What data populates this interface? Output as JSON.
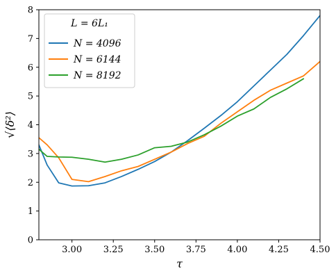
{
  "chart_data": {
    "type": "line",
    "xlabel": "τ",
    "ylabel": "√⟨δ²⟩",
    "xlim": [
      2.8,
      4.5
    ],
    "ylim": [
      0,
      8
    ],
    "xticks": [
      "3.00",
      "3.25",
      "3.50",
      "3.75",
      "4.00",
      "4.25",
      "4.50"
    ],
    "xtick_values": [
      3.0,
      3.25,
      3.5,
      3.75,
      4.0,
      4.25,
      4.5
    ],
    "yticks": [
      "0",
      "1",
      "2",
      "3",
      "4",
      "5",
      "6",
      "7",
      "8"
    ],
    "ytick_values": [
      0,
      1,
      2,
      3,
      4,
      5,
      6,
      7,
      8
    ],
    "grid": false,
    "legend": {
      "title": "L = 6L₁",
      "placement": "upper-left"
    },
    "series": [
      {
        "name": "N = 4096",
        "color": "#1f77b4",
        "x": [
          2.8,
          2.85,
          2.92,
          3.0,
          3.1,
          3.2,
          3.3,
          3.4,
          3.5,
          3.6,
          3.7,
          3.8,
          3.9,
          4.0,
          4.1,
          4.2,
          4.3,
          4.4,
          4.5
        ],
        "y": [
          3.3,
          2.6,
          1.98,
          1.87,
          1.88,
          1.98,
          2.2,
          2.45,
          2.72,
          3.05,
          3.45,
          3.88,
          4.32,
          4.8,
          5.35,
          5.9,
          6.45,
          7.1,
          7.8
        ]
      },
      {
        "name": "N = 6144",
        "color": "#ff7f0e",
        "x": [
          2.8,
          2.85,
          2.92,
          3.0,
          3.1,
          3.2,
          3.3,
          3.4,
          3.5,
          3.6,
          3.7,
          3.8,
          3.9,
          4.0,
          4.1,
          4.2,
          4.3,
          4.4,
          4.5
        ],
        "y": [
          3.55,
          3.3,
          2.85,
          2.1,
          2.02,
          2.2,
          2.4,
          2.55,
          2.8,
          3.05,
          3.35,
          3.6,
          4.05,
          4.45,
          4.85,
          5.2,
          5.45,
          5.7,
          6.2
        ]
      },
      {
        "name": "N = 8192",
        "color": "#2ca02c",
        "x": [
          2.8,
          2.85,
          2.92,
          3.0,
          3.1,
          3.2,
          3.3,
          3.4,
          3.5,
          3.6,
          3.7,
          3.8,
          3.9,
          4.0,
          4.1,
          4.2,
          4.3,
          4.4
        ],
        "y": [
          3.15,
          2.9,
          2.88,
          2.87,
          2.8,
          2.7,
          2.8,
          2.95,
          3.2,
          3.25,
          3.4,
          3.65,
          3.95,
          4.3,
          4.55,
          4.95,
          5.25,
          5.6
        ]
      }
    ]
  }
}
